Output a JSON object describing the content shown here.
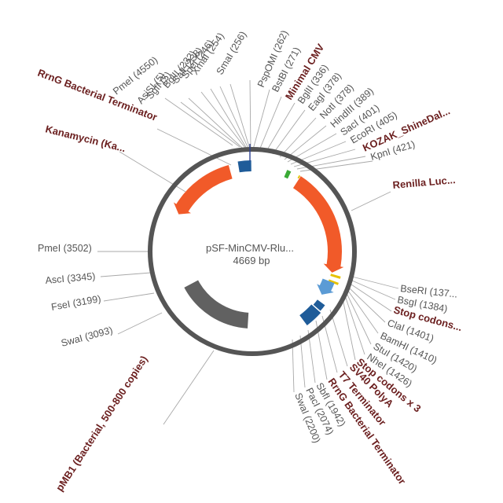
{
  "plasmid": {
    "name": "pSF-MinCMV-Rlu...",
    "size_label": "4669 bp",
    "total_bp": 4669
  },
  "colors": {
    "backbone": "#555555",
    "kanamycin": "#f15a29",
    "renilla": "#f15a29",
    "terminator": "#1f5c99",
    "cmv": "#3aaa35",
    "ori": "#616161",
    "sv40": "#5b9bd5",
    "stop": "#e6c200",
    "label_text": "#555555",
    "feature_text": "#6b1f1f"
  },
  "features": [
    {
      "id": "kanamycin",
      "label": "Kanamycin (Ka...",
      "start": 3850,
      "end": 4470,
      "direction": "reverse",
      "color": "kanamycin",
      "kind": "arrow"
    },
    {
      "id": "rrng-term-top",
      "label": "RrnG Bacterial Terminator",
      "start": 4550,
      "end": 4660,
      "color": "terminator",
      "kind": "box"
    },
    {
      "id": "min-cmv",
      "label": "Minimal CMV",
      "start": 300,
      "end": 336,
      "color": "cmv",
      "kind": "box"
    },
    {
      "id": "kozak",
      "label": "KOZAK_ShineDal...",
      "start": 409,
      "end": 421,
      "color": "stop",
      "kind": "box"
    },
    {
      "id": "renilla",
      "label": "Renilla Luc...",
      "start": 425,
      "end": 1360,
      "direction": "forward",
      "color": "renilla",
      "kind": "arrow"
    },
    {
      "id": "stop-codons-1",
      "label": "Stop codons...",
      "start": 1372,
      "end": 1392,
      "color": "stop",
      "kind": "box"
    },
    {
      "id": "stop-codons-3",
      "label": "Stop codons x 3",
      "start": 1426,
      "end": 1445,
      "color": "stop",
      "kind": "box"
    },
    {
      "id": "sv40",
      "label": "SV40 PolyA",
      "start": 1440,
      "end": 1580,
      "direction": "forward",
      "color": "sv40",
      "kind": "arrow"
    },
    {
      "id": "t7-term",
      "label": "T7 Terminator",
      "start": 1640,
      "end": 1700,
      "color": "terminator",
      "kind": "box"
    },
    {
      "id": "rrng-term-bottom",
      "label": "RrnG Bacterial Terminator",
      "start": 1710,
      "end": 1860,
      "color": "terminator",
      "kind": "box"
    },
    {
      "id": "pmb1",
      "label": "pMB1 (Bacterial, 500-800 copies)",
      "start": 2380,
      "end": 3140,
      "color": "ori",
      "kind": "block"
    }
  ],
  "enzymes_top": [
    {
      "label": "PmeI (4550)"
    },
    {
      "label": "AsiSI (5)"
    },
    {
      "label": "SgfI (5)"
    },
    {
      "label": "BglII (232)"
    },
    {
      "label": "SalI (238)"
    },
    {
      "label": "SpeI (246)"
    },
    {
      "label": "XmaI (254)"
    },
    {
      "label": "SmaI (256)"
    },
    {
      "label": "PspOMI (262)"
    },
    {
      "label": "BstBI (271)"
    },
    {
      "label": "BglII (336)"
    },
    {
      "label": "EagI (378)"
    },
    {
      "label": "NotI (378)"
    },
    {
      "label": "HindIII (389)"
    },
    {
      "label": "SacI (401)"
    },
    {
      "label": "EcoRI (405)"
    },
    {
      "label": "KpnI (421)"
    }
  ],
  "enzymes_right": [
    {
      "label": "BseRI (137..."
    },
    {
      "label": "BsgI (1384)"
    },
    {
      "label": "ClaI (1401)"
    },
    {
      "label": "BamHI (1410)"
    },
    {
      "label": "StuI (1420)"
    },
    {
      "label": "NheI (1426)"
    }
  ],
  "enzymes_bottom": [
    {
      "label": "SbfI (1942)"
    },
    {
      "label": "PacI (2074)"
    },
    {
      "label": "SwaI (2200)"
    }
  ],
  "enzymes_left": [
    {
      "label": "PmeI (3502)"
    },
    {
      "label": "AscI (3345)"
    },
    {
      "label": "FseI (3199)"
    },
    {
      "label": "SwaI (3093)"
    }
  ]
}
